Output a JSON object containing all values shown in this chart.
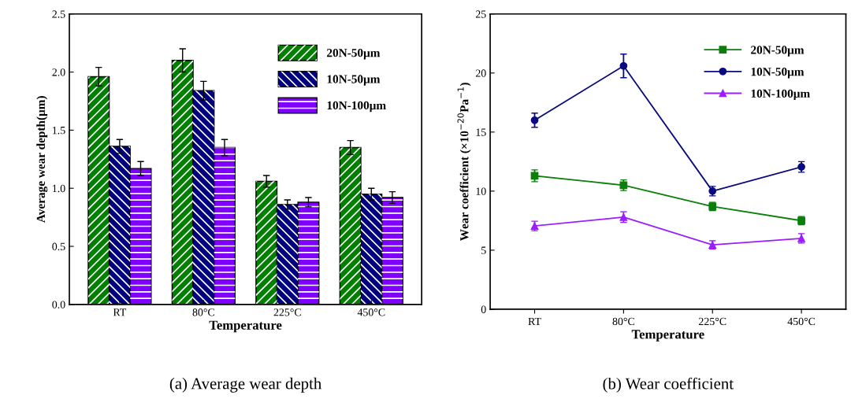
{
  "chart_data": [
    {
      "type": "bar",
      "xlabel": "Temperature",
      "ylabel": "Average wear depth(μm)",
      "categories": [
        "RT",
        "80°C",
        "225°C",
        "450°C"
      ],
      "series": [
        {
          "name": "20N-50μm",
          "color": "#007f00",
          "values": [
            1.96,
            2.1,
            1.06,
            1.35
          ],
          "errors": [
            0.08,
            0.1,
            0.05,
            0.06
          ]
        },
        {
          "name": "10N-50μm",
          "color": "#00007f",
          "values": [
            1.36,
            1.84,
            0.86,
            0.95
          ],
          "errors": [
            0.06,
            0.08,
            0.04,
            0.05
          ]
        },
        {
          "name": "10N-100μm",
          "color": "#8000ff",
          "values": [
            1.17,
            1.35,
            0.88,
            0.92
          ],
          "errors": [
            0.06,
            0.07,
            0.04,
            0.05
          ]
        }
      ],
      "ylim": [
        0,
        2.5
      ],
      "yticks": [
        {
          "value": 0,
          "label": "0.0"
        },
        0.5,
        {
          "value": 1,
          "label": "1.0"
        },
        1.5,
        {
          "value": 2,
          "label": "2.0"
        },
        2.5
      ],
      "legend": "top right",
      "annotations": [
        "(a) Average wear depth"
      ]
    },
    {
      "type": "line",
      "xlabel": "Temperature",
      "ylabel": "Wear coefficient (×10$^{−20}$Pa$^{−1}$)",
      "categories": [
        "RT",
        "80°C",
        "225°C",
        "450°C"
      ],
      "series": [
        {
          "name": "20N-50μm",
          "color": "#0a7f0a",
          "marker": "square",
          "values": [
            11.3,
            10.5,
            8.7,
            7.5
          ],
          "errors": [
            0.5,
            0.45,
            0.35,
            0.35
          ]
        },
        {
          "name": "10N-50μm",
          "color": "#0a0a80",
          "marker": "circle",
          "values": [
            16.0,
            20.6,
            10.0,
            12.05
          ],
          "errors": [
            0.6,
            1.0,
            0.4,
            0.45
          ]
        },
        {
          "name": "10N-100μm",
          "color": "#9b1eff",
          "marker": "triangle",
          "values": [
            7.05,
            7.8,
            5.45,
            6.0
          ],
          "errors": [
            0.4,
            0.45,
            0.35,
            0.4
          ]
        }
      ],
      "ylim": [
        0,
        25
      ],
      "yticks": [
        0,
        5,
        10,
        15,
        20,
        25
      ],
      "legend": "top right",
      "annotations": [
        "(b) Wear coefficient"
      ]
    }
  ]
}
